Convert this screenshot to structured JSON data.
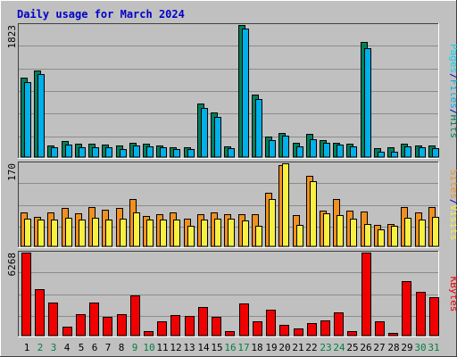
{
  "title": "Daily usage for March 2024",
  "colors": {
    "frame_bg": "#c0c0c0",
    "plot_bg": "#c0c0c0",
    "grid": "#8c8c8c",
    "title": "#0000c8",
    "hits": "#00805c",
    "files": "#00b0e8",
    "pages": "#00d8f0",
    "visits": "#f09020",
    "sites": "#f8f040",
    "kbytes": "#f00000",
    "weekday_label": "#000000",
    "weekend_label": "#008040"
  },
  "days": [
    "1",
    "2",
    "3",
    "4",
    "5",
    "6",
    "7",
    "8",
    "9",
    "10",
    "11",
    "12",
    "13",
    "14",
    "15",
    "16",
    "17",
    "18",
    "19",
    "20",
    "21",
    "22",
    "23",
    "24",
    "25",
    "26",
    "27",
    "28",
    "29",
    "30",
    "31"
  ],
  "weekend_days": [
    2,
    3,
    9,
    10,
    16,
    17,
    23,
    24,
    30,
    31
  ],
  "chart_data": [
    {
      "type": "bar",
      "panel": "hits-files-pages",
      "ymax_label": "1823",
      "ylim": [
        0,
        1823
      ],
      "series_labels": [
        "Pages",
        "/",
        "Files",
        "/",
        "Hits"
      ],
      "series": [
        {
          "name": "Hits",
          "values": [
            1100,
            1190,
            160,
            220,
            180,
            190,
            175,
            160,
            200,
            190,
            160,
            140,
            140,
            740,
            610,
            150,
            1840,
            860,
            280,
            330,
            200,
            320,
            240,
            200,
            180,
            1590,
            120,
            130,
            190,
            160,
            160
          ]
        },
        {
          "name": "Files",
          "values": [
            1040,
            1150,
            130,
            170,
            130,
            140,
            140,
            110,
            160,
            150,
            130,
            110,
            110,
            680,
            560,
            120,
            1770,
            800,
            230,
            300,
            150,
            250,
            200,
            170,
            150,
            1500,
            80,
            80,
            150,
            130,
            120
          ]
        }
      ]
    },
    {
      "type": "bar",
      "panel": "visits-sites",
      "ymax_label": "170",
      "ylim": [
        0,
        170
      ],
      "series_labels": [
        "Sites",
        "/",
        "Visits"
      ],
      "series": [
        {
          "name": "Visits",
          "values": [
            70,
            61,
            70,
            79,
            67,
            81,
            75,
            78,
            97,
            62,
            65,
            70,
            56,
            65,
            69,
            65,
            65,
            65,
            109,
            167,
            64,
            145,
            74,
            96,
            74,
            72,
            44,
            46,
            80,
            69,
            80
          ]
        },
        {
          "name": "Sites",
          "values": [
            56,
            54,
            54,
            58,
            55,
            58,
            55,
            56,
            70,
            54,
            54,
            55,
            42,
            54,
            56,
            56,
            53,
            42,
            97,
            170,
            44,
            134,
            68,
            64,
            56,
            46,
            35,
            42,
            59,
            54,
            60
          ]
        }
      ]
    },
    {
      "type": "bar",
      "panel": "kbytes",
      "ymax_label": "6268",
      "ylim": [
        0,
        6268
      ],
      "series_labels": [
        "KBytes"
      ],
      "series": [
        {
          "name": "KBytes",
          "values": [
            6268,
            3530,
            2520,
            700,
            1620,
            2480,
            1400,
            1630,
            3000,
            320,
            1070,
            1520,
            1500,
            2140,
            1400,
            370,
            2440,
            1070,
            1980,
            780,
            570,
            940,
            1130,
            1760,
            370,
            6300,
            1100,
            230,
            4140,
            3290,
            2900
          ]
        }
      ]
    }
  ]
}
